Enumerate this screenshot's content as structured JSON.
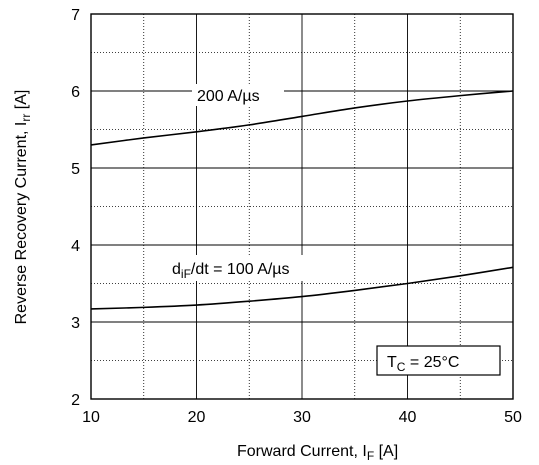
{
  "chart_data": {
    "type": "line",
    "xlabel": "Forward Current, I",
    "xlabel_sub": "F",
    "xlabel_unit": " [A]",
    "ylabel": "Reverse Recovery Current, I",
    "ylabel_sub": "rr",
    "ylabel_unit": " [A]",
    "xlim": [
      10,
      50
    ],
    "ylim": [
      2,
      7
    ],
    "xticks": [
      "10",
      "20",
      "30",
      "40",
      "50"
    ],
    "yticks": [
      "2",
      "3",
      "4",
      "5",
      "6",
      "7"
    ],
    "grid": true,
    "series": [
      {
        "label": "200 A/µs",
        "x": [
          10,
          15,
          20,
          25,
          30,
          35,
          40,
          45,
          50
        ],
        "y": [
          5.3,
          5.39,
          5.47,
          5.56,
          5.67,
          5.78,
          5.87,
          5.94,
          6.0
        ]
      },
      {
        "label_prefix": "d",
        "label_sub": "iF",
        "label_suffix": "/dt = 100 A/µs",
        "x": [
          10,
          15,
          20,
          25,
          30,
          35,
          40,
          45,
          50
        ],
        "y": [
          3.17,
          3.19,
          3.22,
          3.27,
          3.33,
          3.41,
          3.5,
          3.6,
          3.71
        ]
      }
    ],
    "annotation": {
      "prefix": "T",
      "sub": "C",
      "suffix": " = 25°C"
    }
  }
}
